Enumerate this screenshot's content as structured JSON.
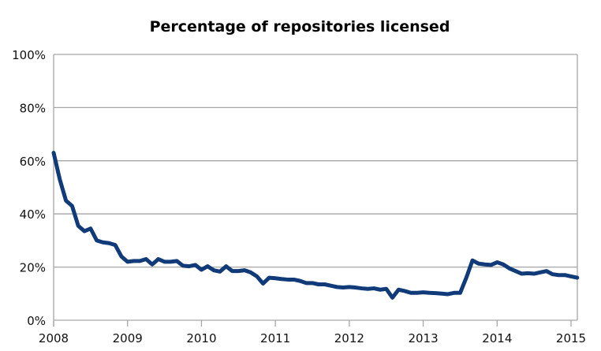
{
  "chart_data": {
    "type": "line",
    "title": "Percentage of repositories licensed",
    "xlabel": "",
    "ylabel": "",
    "x_start": "2008-01",
    "x_interval": "month",
    "xlim": [
      2008,
      2015.1
    ],
    "ylim": [
      0,
      100
    ],
    "x_ticks": [
      "2008",
      "2009",
      "2010",
      "2011",
      "2012",
      "2013",
      "2014",
      "2015"
    ],
    "y_ticks": [
      "0%",
      "20%",
      "40%",
      "60%",
      "80%",
      "100%"
    ],
    "grid": "horizontal",
    "legend": "none",
    "line_color": "#103a78",
    "series": [
      {
        "values": [
          63,
          53,
          45,
          43,
          35.5,
          33.5,
          34.5,
          30,
          29.3,
          29,
          28.3,
          24,
          22,
          22.3,
          22.3,
          23,
          21,
          23,
          22,
          22,
          22.3,
          20.5,
          20.3,
          20.8,
          19,
          20.3,
          18.8,
          18.3,
          20.3,
          18.5,
          18.5,
          18.8,
          18,
          16.5,
          13.8,
          16,
          15.8,
          15.5,
          15.3,
          15.3,
          14.8,
          14,
          14,
          13.5,
          13.5,
          13,
          12.5,
          12.3,
          12.5,
          12.3,
          12,
          11.8,
          12,
          11.5,
          11.8,
          8.5,
          11.5,
          11,
          10.3,
          10.3,
          10.5,
          10.3,
          10.2,
          10,
          9.8,
          10.3,
          10.3,
          16,
          22.5,
          21.3,
          21,
          20.8,
          21.8,
          21,
          19.5,
          18.5,
          17.5,
          17.7,
          17.5,
          18,
          18.5,
          17.3,
          17,
          17,
          16.5,
          16
        ]
      }
    ]
  }
}
